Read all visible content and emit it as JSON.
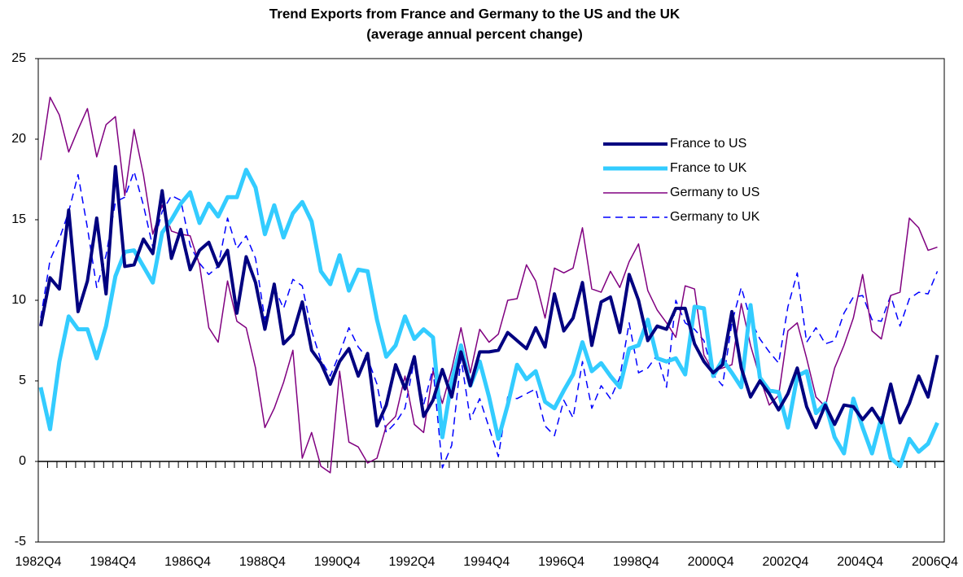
{
  "chart_data": {
    "type": "line",
    "title": "Trend Exports from France and Germany to the US and the UK",
    "subtitle": "(average annual percent change)",
    "categories": [
      "1982Q4",
      null,
      null,
      null,
      null,
      null,
      null,
      null,
      "1984Q4",
      null,
      null,
      null,
      null,
      null,
      null,
      null,
      "1986Q4",
      null,
      null,
      null,
      null,
      null,
      null,
      null,
      "1988Q4",
      null,
      null,
      null,
      null,
      null,
      null,
      null,
      "1990Q4",
      null,
      null,
      null,
      null,
      null,
      null,
      null,
      "1992Q4",
      null,
      null,
      null,
      null,
      null,
      null,
      null,
      "1994Q4",
      null,
      null,
      null,
      null,
      null,
      null,
      null,
      "1996Q4",
      null,
      null,
      null,
      null,
      null,
      null,
      null,
      "1998Q4",
      null,
      null,
      null,
      null,
      null,
      null,
      null,
      "2000Q4",
      null,
      null,
      null,
      null,
      null,
      null,
      null,
      "2002Q4",
      null,
      null,
      null,
      null,
      null,
      null,
      null,
      "2004Q4",
      null,
      null,
      null,
      null,
      null,
      null,
      null,
      "2006Q4"
    ],
    "ylim": [
      -5,
      25
    ],
    "yticks": [
      -5,
      0,
      5,
      10,
      15,
      20,
      25
    ],
    "grid": false,
    "series": [
      {
        "name": "France to US",
        "color": "#000080",
        "linewidth": 4,
        "linestyle": "solid",
        "values": [
          8.4,
          11.4,
          10.7,
          15.6,
          9.3,
          11.2,
          15.1,
          10.4,
          18.3,
          12.1,
          12.2,
          13.8,
          12.9,
          16.8,
          12.6,
          14.4,
          11.9,
          13.1,
          13.6,
          12.1,
          13.1,
          9.2,
          12.7,
          11.1,
          8.2,
          11.0,
          7.3,
          7.9,
          9.9,
          6.9,
          6.1,
          4.8,
          6.2,
          7.0,
          5.3,
          6.7,
          2.2,
          3.5,
          6.0,
          4.5,
          6.5,
          2.8,
          3.8,
          5.7,
          4.0,
          6.8,
          4.7,
          6.8,
          6.8,
          6.9,
          8.0,
          7.5,
          7.0,
          8.3,
          7.1,
          10.4,
          8.1,
          8.9,
          11.1,
          7.2,
          9.9,
          10.2,
          8.0,
          11.6,
          10.0,
          7.5,
          8.4,
          8.2,
          9.5,
          9.5,
          7.3,
          6.2,
          5.5,
          6.0,
          9.3,
          5.8,
          4.0,
          5.0,
          4.2,
          3.2,
          4.2,
          5.8,
          3.4,
          2.1,
          3.5,
          2.3,
          3.5,
          3.4,
          2.6,
          3.3,
          2.4,
          4.8,
          2.4,
          3.6,
          5.3,
          4.0,
          6.6
        ]
      },
      {
        "name": "France to UK",
        "color": "#33ccff",
        "linewidth": 5,
        "linestyle": "solid",
        "values": [
          4.6,
          2.0,
          6.2,
          9.0,
          8.2,
          8.2,
          6.4,
          8.4,
          11.5,
          13.0,
          13.1,
          12.1,
          11.1,
          14.2,
          15.0,
          16.0,
          16.7,
          14.8,
          16.0,
          15.2,
          16.4,
          16.4,
          18.1,
          17.0,
          14.1,
          15.9,
          13.9,
          15.4,
          16.1,
          14.9,
          11.8,
          11.0,
          12.8,
          10.6,
          11.9,
          11.8,
          8.8,
          6.5,
          7.2,
          9.0,
          7.6,
          8.2,
          7.7,
          1.5,
          5.0,
          7.2,
          4.7,
          6.2,
          4.0,
          1.4,
          3.5,
          6.0,
          5.1,
          5.6,
          3.7,
          3.3,
          4.4,
          5.4,
          7.4,
          5.6,
          6.1,
          5.3,
          4.6,
          7.0,
          7.2,
          8.8,
          6.4,
          6.2,
          6.4,
          5.4,
          9.6,
          9.5,
          5.3,
          6.3,
          5.5,
          4.6,
          9.7,
          5.2,
          4.4,
          4.3,
          2.1,
          5.3,
          5.6,
          3.0,
          3.6,
          1.5,
          0.5,
          3.9,
          2.1,
          0.5,
          2.7,
          0.2,
          -0.3,
          1.4,
          0.6,
          1.1,
          2.4
        ]
      },
      {
        "name": "Germany to US",
        "color": "#800080",
        "linewidth": 1.5,
        "linestyle": "solid",
        "values": [
          18.7,
          22.6,
          21.5,
          19.2,
          20.6,
          21.9,
          18.9,
          20.9,
          21.4,
          16.5,
          20.6,
          17.8,
          14.1,
          15.9,
          14.3,
          14.1,
          14.0,
          12.2,
          8.3,
          7.4,
          11.2,
          8.7,
          8.3,
          5.8,
          2.1,
          3.3,
          4.9,
          6.9,
          0.2,
          1.8,
          -0.3,
          -0.7,
          5.6,
          1.2,
          0.9,
          -0.1,
          0.2,
          2.2,
          2.8,
          5.3,
          2.3,
          1.8,
          5.6,
          3.6,
          5.7,
          8.3,
          5.5,
          8.2,
          7.4,
          7.9,
          10.0,
          10.1,
          12.2,
          11.2,
          8.9,
          12.0,
          11.7,
          12.0,
          14.5,
          10.7,
          10.5,
          11.8,
          10.8,
          12.4,
          13.5,
          10.6,
          9.4,
          8.6,
          7.7,
          10.9,
          10.7,
          6.6,
          5.6,
          5.8,
          6.0,
          9.8,
          7.2,
          5.2,
          3.5,
          4.1,
          8.1,
          8.6,
          6.4,
          4.0,
          3.4,
          5.8,
          7.2,
          8.9,
          11.6,
          8.1,
          7.6,
          10.3,
          10.5,
          15.1,
          14.5,
          13.1,
          13.3
        ]
      },
      {
        "name": "Germany to UK",
        "color": "#0000ff",
        "linewidth": 1.5,
        "linestyle": "dashed",
        "values": [
          8.9,
          12.5,
          13.8,
          15.5,
          17.8,
          14.5,
          10.8,
          12.8,
          16.1,
          16.4,
          18.0,
          15.9,
          13.3,
          15.5,
          16.5,
          16.2,
          13.4,
          12.3,
          11.6,
          12.1,
          15.1,
          13.2,
          14.0,
          12.6,
          8.8,
          10.8,
          9.5,
          11.3,
          10.9,
          8.1,
          6.3,
          5.3,
          6.7,
          8.3,
          7.1,
          6.4,
          4.8,
          1.8,
          2.4,
          3.3,
          6.3,
          3.5,
          5.8,
          -0.4,
          1.0,
          6.4,
          2.6,
          3.9,
          2.1,
          0.3,
          4.0,
          3.9,
          4.2,
          4.5,
          2.2,
          1.6,
          3.8,
          2.7,
          6.2,
          3.3,
          4.7,
          3.9,
          5.2,
          8.6,
          5.5,
          5.8,
          6.6,
          4.6,
          10.0,
          8.6,
          8.2,
          7.5,
          5.4,
          4.7,
          8.6,
          10.8,
          8.8,
          7.6,
          6.8,
          6.1,
          9.6,
          11.7,
          7.4,
          8.3,
          7.3,
          7.5,
          9.2,
          10.2,
          10.3,
          8.8,
          8.7,
          10.3,
          8.4,
          10.1,
          10.5,
          10.4,
          11.8
        ]
      }
    ]
  }
}
